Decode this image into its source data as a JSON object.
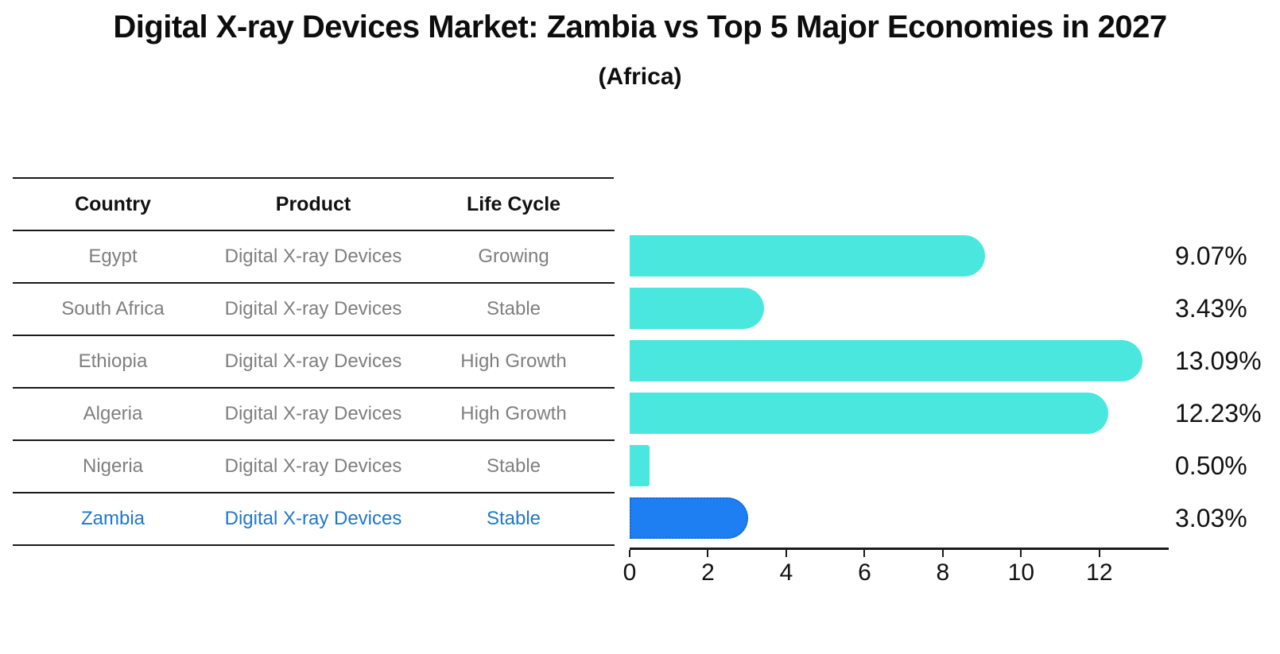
{
  "header": {
    "title": "Digital X-ray Devices Market: Zambia vs Top 5 Major Economies in 2027",
    "subtitle": "(Africa)"
  },
  "colors": {
    "bar_default": "#4AE7DF",
    "bar_highlight": "#1E7FF2",
    "highlight_border": "#1668D6",
    "highlight_text": "#1F78C8",
    "row_text": "#7F7F7F",
    "header_text": "#111111",
    "axis": "#1A1A1A"
  },
  "table": {
    "headers": [
      "Country",
      "Product",
      "Life Cycle"
    ],
    "rows": [
      {
        "country": "Egypt",
        "product": "Digital X-ray Devices",
        "life_cycle": "Growing"
      },
      {
        "country": "South Africa",
        "product": "Digital X-ray Devices",
        "life_cycle": "Stable"
      },
      {
        "country": "Ethiopia",
        "product": "Digital X-ray Devices",
        "life_cycle": "High Growth"
      },
      {
        "country": "Algeria",
        "product": "Digital X-ray Devices",
        "life_cycle": "High Growth"
      },
      {
        "country": "Nigeria",
        "product": "Digital X-ray Devices",
        "life_cycle": "Stable"
      },
      {
        "country": "Zambia",
        "product": "Digital X-ray Devices",
        "life_cycle": "Stable"
      }
    ]
  },
  "chart_data": {
    "type": "bar",
    "orientation": "horizontal",
    "title": "Digital X-ray Devices Market: Zambia vs Top 5 Major Economies in 2027",
    "subtitle": "(Africa)",
    "categories": [
      "Egypt",
      "South Africa",
      "Ethiopia",
      "Algeria",
      "Nigeria",
      "Zambia"
    ],
    "values": [
      9.07,
      3.43,
      13.09,
      12.23,
      0.5,
      3.03
    ],
    "value_labels": [
      "9.07%",
      "3.43%",
      "13.09%",
      "12.23%",
      "0.50%",
      "3.03%"
    ],
    "highlight_category": "Zambia",
    "highlight_index": 5,
    "xlabel": "",
    "ylabel": "",
    "xlim": [
      0,
      13.77
    ],
    "x_ticks": [
      0,
      2,
      4,
      6,
      8,
      10,
      12
    ],
    "x_tick_labels": [
      "0",
      "2",
      "4",
      "6",
      "8",
      "10",
      "12"
    ],
    "grid": false,
    "legend": "none"
  }
}
